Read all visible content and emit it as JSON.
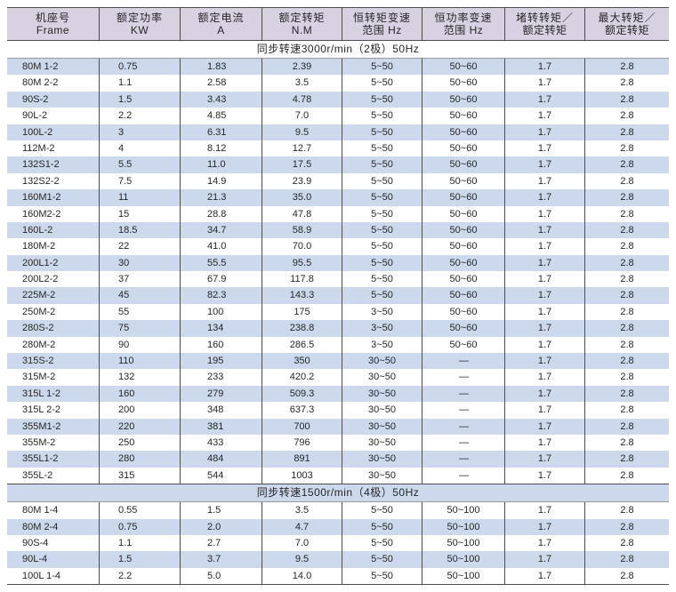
{
  "colors": {
    "header_bg": "#d7d1e2",
    "stripe_bg": "#ccd9ec",
    "border_dark": "#4d4d4d",
    "text": "#262626"
  },
  "table": {
    "columns": [
      {
        "line1": "机座号",
        "line2": "Frame"
      },
      {
        "line1": "额定功率",
        "line2": "KW"
      },
      {
        "line1": "额定电流",
        "line2": "A"
      },
      {
        "line1": "额定转矩",
        "line2": "N.M"
      },
      {
        "line1": "恒转矩变速",
        "line2": "范围 Hz"
      },
      {
        "line1": "恒功率变速",
        "line2": "范围 Hz"
      },
      {
        "line1": "堵转转矩／",
        "line2": "额定转矩"
      },
      {
        "line1": "最大转矩／",
        "line2": "额定转矩"
      }
    ],
    "sections": [
      {
        "title": "同步转速3000r/min（2极）50Hz",
        "rows": [
          [
            "80M 1-2",
            "0.75",
            "1.83",
            "2.39",
            "5~50",
            "50~60",
            "1.7",
            "2.8"
          ],
          [
            "80M 2-2",
            "1.1",
            "2.58",
            "3.5",
            "5~50",
            "50~60",
            "1.7",
            "2.8"
          ],
          [
            "90S-2",
            "1.5",
            "3.43",
            "4.78",
            "5~50",
            "50~60",
            "1.7",
            "2.8"
          ],
          [
            "90L-2",
            "2.2",
            "4.85",
            "7.0",
            "5~50",
            "50~60",
            "1.7",
            "2.8"
          ],
          [
            "100L-2",
            "3",
            "6.31",
            "9.5",
            "5~50",
            "50~60",
            "1.7",
            "2.8"
          ],
          [
            "112M-2",
            "4",
            "8.12",
            "12.7",
            "5~50",
            "50~60",
            "1.7",
            "2.8"
          ],
          [
            "132S1-2",
            "5.5",
            "11.0",
            "17.5",
            "5~50",
            "50~60",
            "1.7",
            "2.8"
          ],
          [
            "132S2-2",
            "7.5",
            "14.9",
            "23.9",
            "5~50",
            "50~60",
            "1.7",
            "2.8"
          ],
          [
            "160M1-2",
            "11",
            "21.3",
            "35.0",
            "5~50",
            "50~60",
            "1.7",
            "2.8"
          ],
          [
            "160M2-2",
            "15",
            "28.8",
            "47.8",
            "5~50",
            "50~60",
            "1.7",
            "2.8"
          ],
          [
            "160L-2",
            "18.5",
            "34.7",
            "58.9",
            "5~50",
            "50~60",
            "1.7",
            "2.8"
          ],
          [
            "180M-2",
            "22",
            "41.0",
            "70.0",
            "5~50",
            "50~60",
            "1.7",
            "2.8"
          ],
          [
            "200L1-2",
            "30",
            "55.5",
            "95.5",
            "5~50",
            "50~60",
            "1.7",
            "2.8"
          ],
          [
            "200L2-2",
            "37",
            "67.9",
            "117.8",
            "5~50",
            "50~60",
            "1.7",
            "2.8"
          ],
          [
            "225M-2",
            "45",
            "82.3",
            "143.3",
            "5~50",
            "50~60",
            "1.7",
            "2.8"
          ],
          [
            "250M-2",
            "55",
            "100",
            "175",
            "3~50",
            "50~60",
            "1.7",
            "2.8"
          ],
          [
            "280S-2",
            "75",
            "134",
            "238.8",
            "3~50",
            "50~60",
            "1.7",
            "2.8"
          ],
          [
            "280M-2",
            "90",
            "160",
            "286.5",
            "3~50",
            "50~60",
            "1.7",
            "2.8"
          ],
          [
            "315S-2",
            "110",
            "195",
            "350",
            "30~50",
            "—",
            "1.7",
            "2.8"
          ],
          [
            "315M-2",
            "132",
            "233",
            "420.2",
            "30~50",
            "—",
            "1.7",
            "2.8"
          ],
          [
            "315L 1-2",
            "160",
            "279",
            "509.3",
            "30~50",
            "—",
            "1.7",
            "2.8"
          ],
          [
            "315L 2-2",
            "200",
            "348",
            "637.3",
            "30~50",
            "—",
            "1.7",
            "2.8"
          ],
          [
            "355M1-2",
            "220",
            "381",
            "700",
            "30~50",
            "—",
            "1.7",
            "2.8"
          ],
          [
            "355M-2",
            "250",
            "433",
            "796",
            "30~50",
            "—",
            "1.7",
            "2.8"
          ],
          [
            "355L1-2",
            "280",
            "484",
            "891",
            "30~50",
            "—",
            "1.7",
            "2.8"
          ],
          [
            "355L-2",
            "315",
            "544",
            "1003",
            "30~50",
            "—",
            "1.7",
            "2.8"
          ]
        ]
      },
      {
        "title": "同步转速1500r/min（4极）50Hz",
        "rows": [
          [
            "80M 1-4",
            "0.55",
            "1.5",
            "3.5",
            "5~50",
            "50~100",
            "1.7",
            "2.8"
          ],
          [
            "80M 2-4",
            "0.75",
            "2.0",
            "4.7",
            "5~50",
            "50~100",
            "1.7",
            "2.8"
          ],
          [
            "90S-4",
            "1.1",
            "2.7",
            "7.0",
            "5~50",
            "50~100",
            "1.7",
            "2.8"
          ],
          [
            "90L-4",
            "1.5",
            "3.7",
            "9.5",
            "5~50",
            "50~100",
            "1.7",
            "2.8"
          ],
          [
            "100L 1-4",
            "2.2",
            "5.0",
            "14.0",
            "5~50",
            "50~100",
            "1.7",
            "2.8"
          ]
        ]
      }
    ]
  }
}
